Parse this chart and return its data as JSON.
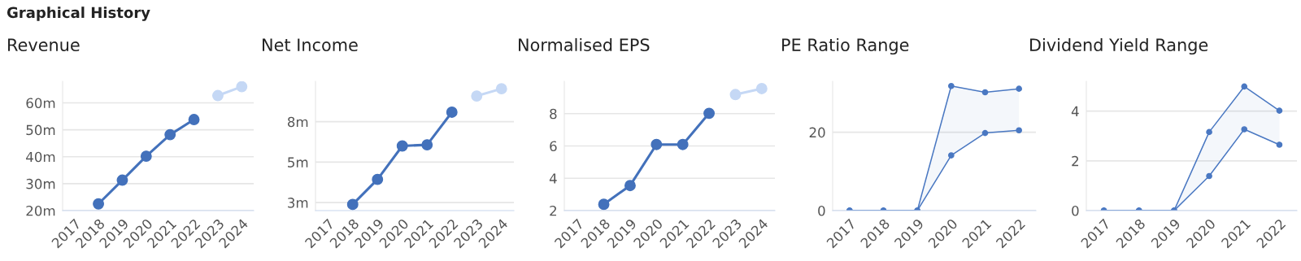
{
  "chart_data": [
    {
      "type": "line",
      "title": "Revenue",
      "annotations": [
        "Graphical History"
      ],
      "categories": [
        "2017",
        "2018",
        "2019",
        "2020",
        "2021",
        "2022",
        "2023",
        "2024"
      ],
      "ylim": [
        20,
        68
      ],
      "yticks": [
        {
          "value": 20,
          "label": "20m"
        },
        {
          "value": 30,
          "label": "30m"
        },
        {
          "value": 40,
          "label": "40m"
        },
        {
          "value": 50,
          "label": "50m"
        },
        {
          "value": 60,
          "label": "60m"
        }
      ],
      "grid": "y",
      "marker": "circle",
      "series": [
        {
          "color": "#4371bb",
          "values": [
            null,
            22.5,
            31.3,
            40.2,
            48.2,
            53.8,
            null,
            null
          ]
        },
        {
          "color": "#c5d8f5",
          "values": [
            null,
            null,
            null,
            null,
            null,
            null,
            62.7,
            66.0
          ]
        }
      ]
    },
    {
      "type": "line",
      "title": "Net Income",
      "categories": [
        "2017",
        "2018",
        "2019",
        "2020",
        "2021",
        "2022",
        "2023",
        "2024"
      ],
      "ylim": [
        2,
        10
      ],
      "yticks": [
        {
          "value": 2.5,
          "label": "3m"
        },
        {
          "value": 5,
          "label": "5m"
        },
        {
          "value": 7.5,
          "label": "8m"
        }
      ],
      "grid": "y",
      "marker": "circle",
      "series": [
        {
          "color": "#4371bb",
          "values": [
            null,
            2.38,
            3.93,
            6.0,
            6.07,
            8.09,
            null,
            null
          ]
        },
        {
          "color": "#c5d8f5",
          "values": [
            null,
            null,
            null,
            null,
            null,
            null,
            9.09,
            9.54
          ]
        }
      ]
    },
    {
      "type": "line",
      "title": "Normalised EPS",
      "categories": [
        "2017",
        "2018",
        "2019",
        "2020",
        "2021",
        "2022",
        "2023",
        "2024"
      ],
      "ylim": [
        2,
        10
      ],
      "yticks": [
        2,
        4,
        6,
        8
      ],
      "grid": "y",
      "marker": "circle",
      "series": [
        {
          "color": "#4371bb",
          "values": [
            null,
            2.39,
            3.55,
            6.09,
            6.09,
            8.02,
            null,
            null
          ]
        },
        {
          "color": "#c5d8f5",
          "values": [
            null,
            null,
            null,
            null,
            null,
            null,
            9.18,
            9.55
          ]
        }
      ]
    },
    {
      "type": "line",
      "title": "PE Ratio Range",
      "categories": [
        "2017",
        "2018",
        "2019",
        "2020",
        "2021",
        "2022"
      ],
      "ylim": [
        0,
        33
      ],
      "yticks": [
        0,
        20
      ],
      "grid": "y",
      "marker": "circle",
      "series": [
        {
          "color": "#4a78c2",
          "values": [
            0,
            0,
            0,
            31.8,
            30.2,
            31.1
          ],
          "lower": [
            0,
            0,
            0,
            14.1,
            19.8,
            20.5
          ],
          "upper": [
            0,
            0,
            0,
            31.8,
            30.2,
            31.1
          ]
        },
        {
          "color": "#4a78c2",
          "values": [
            0,
            0,
            0,
            14.1,
            19.8,
            20.5
          ]
        }
      ]
    },
    {
      "type": "line",
      "title": "Dividend Yield Range",
      "categories": [
        "2017",
        "2018",
        "2019",
        "2020",
        "2021",
        "2022"
      ],
      "ylim": [
        0,
        5.2
      ],
      "yticks": [
        0,
        2,
        4
      ],
      "grid": "y",
      "marker": "circle",
      "series": [
        {
          "color": "#4a78c2",
          "values": [
            0,
            0,
            0,
            3.16,
            4.99,
            4.02
          ],
          "lower": [
            0,
            0,
            0,
            1.39,
            3.27,
            2.65
          ],
          "upper": [
            0,
            0,
            0,
            3.16,
            4.99,
            4.02
          ]
        },
        {
          "color": "#4a78c2",
          "values": [
            0,
            0,
            0,
            1.39,
            3.27,
            2.65
          ]
        }
      ]
    }
  ]
}
